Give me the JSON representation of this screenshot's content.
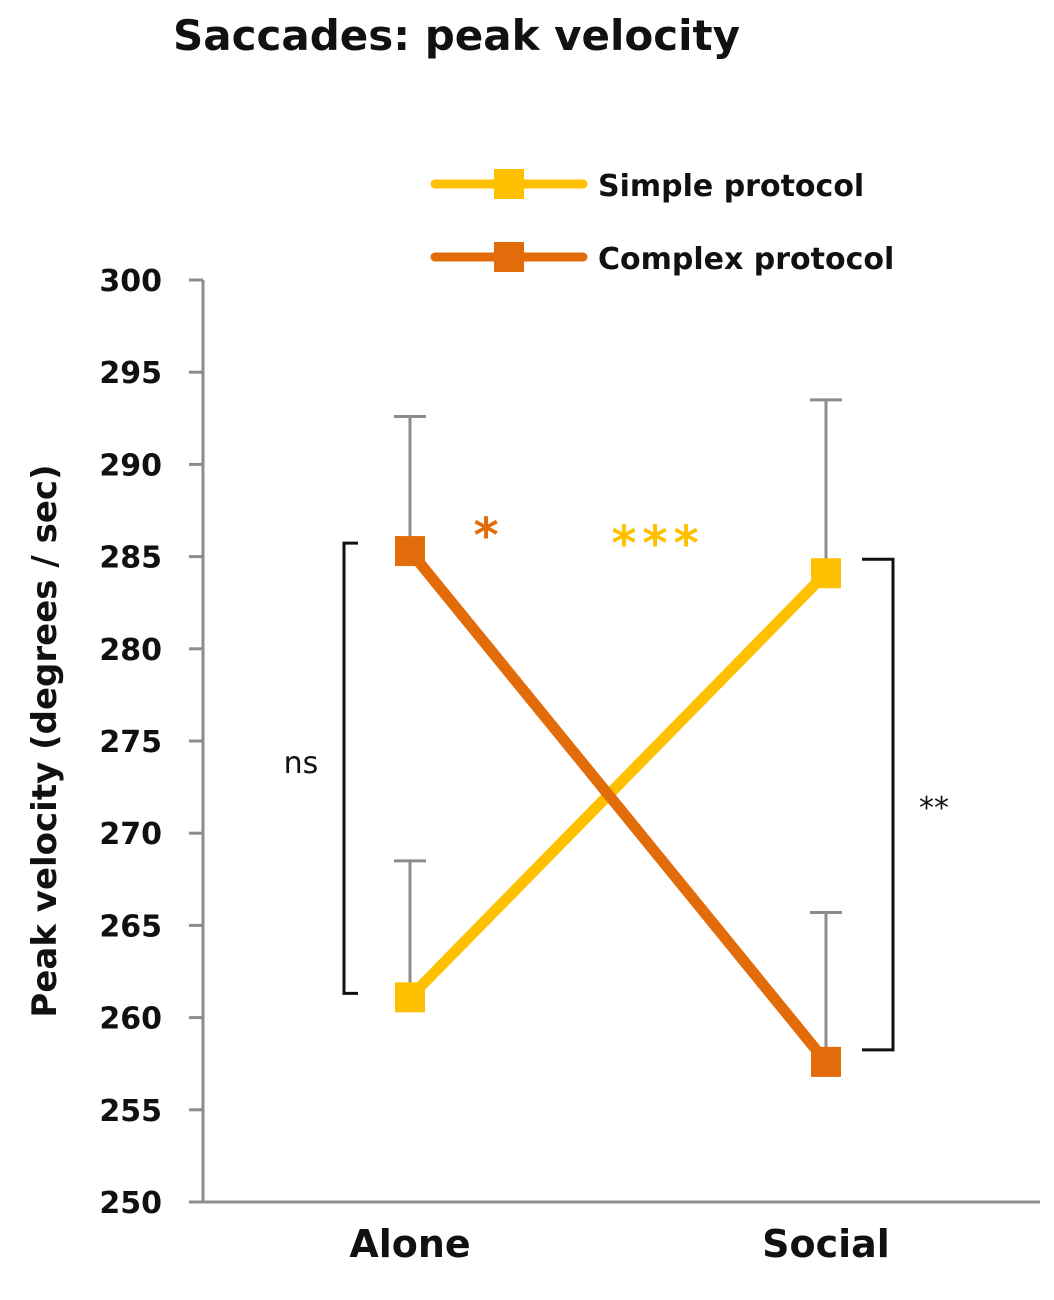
{
  "chart_data": {
    "type": "line",
    "title": "Saccades: peak velocity",
    "ylabel": "Peak velocity (degrees / sec)",
    "xlabel": "",
    "categories": [
      "Alone",
      "Social"
    ],
    "ylim": [
      250,
      300
    ],
    "yticks": [
      250,
      255,
      260,
      265,
      270,
      275,
      280,
      285,
      290,
      295,
      300
    ],
    "ytick_labels": [
      "250",
      "255",
      "260",
      "265",
      "270",
      "275",
      "280",
      "285",
      "290",
      "295",
      "300"
    ],
    "grid": false,
    "legend_position": "top-right",
    "series": [
      {
        "name": "Simple protocol",
        "color": "#FFC000",
        "values": [
          261.1,
          284.1
        ],
        "error_upper": [
          268.5,
          293.5
        ]
      },
      {
        "name": "Complex protocol",
        "color": "#E36C0A",
        "values": [
          285.3,
          257.6
        ],
        "error_upper": [
          292.6,
          265.7
        ]
      }
    ],
    "annotations": {
      "alone_bracket": "ns",
      "social_bracket": "**",
      "complex_star": "*",
      "simple_star": "***"
    },
    "colors": {
      "simple": "#FFC000",
      "complex": "#E36C0A",
      "axis": "#8c8c8c",
      "error_bar": "#8c8c8c",
      "bracket": "#111111"
    }
  }
}
